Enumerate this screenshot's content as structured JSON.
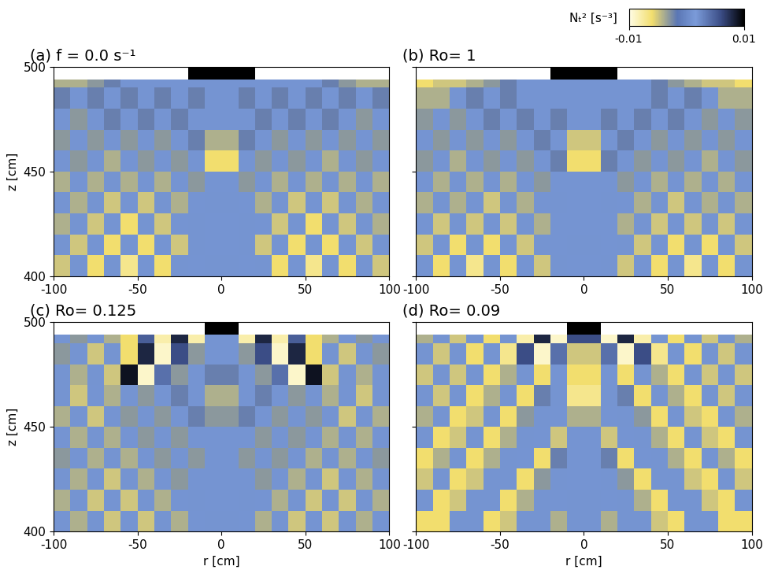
{
  "colorbar": {
    "label": "Nₜ² [s⁻³]",
    "range": [
      -0.01,
      0.01
    ],
    "ticks": [
      -0.01,
      0.01
    ]
  },
  "chart_data": [
    {
      "type": "heatmap",
      "title": "(a) f = 0.0 s⁻¹",
      "ylabel": "z [cm]",
      "xlim": [
        -100,
        100
      ],
      "ylim": [
        400,
        500
      ],
      "xticks": [
        -100,
        -50,
        0,
        50,
        100
      ],
      "yticks": [
        400,
        450,
        500
      ],
      "r_edges": [
        -100,
        -90,
        -80,
        -70,
        -60,
        -50,
        -40,
        -30,
        -20,
        -10,
        0,
        10,
        20,
        30,
        40,
        50,
        60,
        70,
        80,
        90,
        100
      ],
      "z_edges": [
        400,
        410,
        420,
        430,
        440,
        450,
        460,
        470,
        480,
        490,
        494,
        500
      ],
      "cells": [
        [
          -0.005,
          0.002,
          -0.006,
          0.002,
          -0.007,
          0.001,
          -0.006,
          0.002,
          0.001,
          0.002,
          0.002,
          0.001,
          0.002,
          -0.006,
          0.001,
          -0.007,
          0.002,
          -0.006,
          0.002,
          -0.005
        ],
        [
          0.002,
          -0.005,
          0.001,
          -0.006,
          0.002,
          -0.006,
          0.001,
          -0.005,
          0.002,
          0.001,
          0.001,
          0.002,
          -0.005,
          0.001,
          -0.006,
          0.002,
          -0.006,
          0.001,
          -0.005,
          0.002
        ],
        [
          -0.004,
          0.002,
          -0.005,
          0.001,
          -0.006,
          0.002,
          -0.005,
          0.001,
          0.002,
          0.001,
          0.001,
          0.002,
          0.001,
          -0.005,
          0.002,
          -0.006,
          0.001,
          -0.005,
          0.002,
          -0.004
        ],
        [
          0.001,
          -0.004,
          0.002,
          -0.005,
          0.001,
          -0.005,
          0.002,
          -0.004,
          0.001,
          0.002,
          0.002,
          0.001,
          -0.004,
          0.002,
          -0.005,
          0.001,
          -0.005,
          0.002,
          -0.004,
          0.001
        ],
        [
          -0.004,
          0.001,
          -0.004,
          0.002,
          -0.004,
          0.001,
          -0.004,
          0.001,
          -0.003,
          0.001,
          0.001,
          -0.003,
          0.001,
          -0.004,
          0.001,
          -0.004,
          0.002,
          -0.004,
          0.001,
          -0.004
        ],
        [
          0.001,
          -0.003,
          0.001,
          -0.004,
          0.001,
          -0.003,
          0.001,
          -0.003,
          0.001,
          -0.006,
          -0.006,
          0.001,
          -0.003,
          0.001,
          -0.003,
          0.001,
          -0.004,
          0.001,
          -0.003,
          0.001
        ],
        [
          -0.003,
          0.001,
          -0.003,
          0.001,
          -0.003,
          0.001,
          -0.003,
          0.001,
          -0.002,
          -0.004,
          -0.004,
          -0.002,
          0.001,
          -0.003,
          0.001,
          -0.003,
          0.001,
          -0.003,
          0.001,
          -0.003
        ],
        [
          0.001,
          -0.003,
          0.001,
          -0.002,
          0.001,
          -0.002,
          0.001,
          -0.002,
          0.001,
          0.001,
          0.001,
          0.001,
          -0.002,
          0.001,
          -0.002,
          0.001,
          -0.002,
          0.001,
          -0.003,
          0.001
        ],
        [
          -0.002,
          0.001,
          -0.002,
          0.001,
          -0.002,
          0.001,
          -0.002,
          0.001,
          -0.002,
          0.001,
          0.001,
          -0.002,
          0.001,
          -0.002,
          0.001,
          -0.002,
          0.001,
          -0.002,
          0.001,
          -0.002
        ],
        [
          -0.004,
          -0.004,
          -0.003,
          -0.002,
          0.001,
          0.001,
          0.001,
          0.001,
          0.001,
          0.001,
          0.001,
          0.001,
          0.001,
          0.001,
          0.001,
          0.001,
          -0.002,
          -0.003,
          -0.004,
          -0.004
        ],
        [
          null,
          null,
          null,
          null,
          null,
          null,
          null,
          null,
          0.01,
          0.01,
          0.01,
          0.01,
          null,
          null,
          null,
          null,
          null,
          null,
          null,
          null
        ]
      ]
    },
    {
      "type": "heatmap",
      "title": "(b) Ro= 1",
      "tick_labels": "x",
      "xlim": [
        -100,
        100
      ],
      "ylim": [
        400,
        500
      ],
      "xticks": [
        -100,
        -50,
        0,
        50,
        100
      ],
      "yticks": [
        400,
        450,
        500
      ],
      "r_edges": [
        -100,
        -90,
        -80,
        -70,
        -60,
        -50,
        -40,
        -30,
        -20,
        -10,
        0,
        10,
        20,
        30,
        40,
        50,
        60,
        70,
        80,
        90,
        100
      ],
      "z_edges": [
        400,
        410,
        420,
        430,
        440,
        450,
        460,
        470,
        480,
        490,
        494,
        500
      ],
      "cells": [
        [
          0.002,
          -0.006,
          0.001,
          -0.007,
          0.002,
          -0.006,
          0.001,
          -0.005,
          0.002,
          0.001,
          0.001,
          0.002,
          -0.005,
          0.001,
          -0.006,
          0.002,
          -0.007,
          0.001,
          -0.006,
          0.002
        ],
        [
          -0.005,
          0.001,
          -0.006,
          0.002,
          -0.006,
          0.001,
          -0.005,
          0.002,
          0.001,
          0.002,
          0.002,
          0.001,
          0.002,
          -0.005,
          0.001,
          -0.006,
          0.002,
          -0.006,
          0.001,
          -0.005
        ],
        [
          0.001,
          -0.005,
          0.002,
          -0.005,
          0.001,
          -0.005,
          0.002,
          -0.004,
          0.001,
          0.001,
          0.001,
          0.001,
          -0.004,
          0.002,
          -0.005,
          0.001,
          -0.005,
          0.002,
          -0.005,
          0.001
        ],
        [
          -0.004,
          0.002,
          -0.004,
          0.001,
          -0.005,
          0.002,
          -0.004,
          0.001,
          0.002,
          0.001,
          0.001,
          0.002,
          0.001,
          -0.004,
          0.002,
          -0.005,
          0.001,
          -0.004,
          0.002,
          -0.004
        ],
        [
          0.001,
          -0.004,
          0.001,
          -0.004,
          0.001,
          -0.004,
          0.001,
          -0.003,
          0.001,
          0.001,
          0.001,
          0.001,
          -0.003,
          0.001,
          -0.004,
          0.001,
          -0.004,
          0.001,
          -0.004,
          0.001
        ],
        [
          -0.003,
          0.001,
          -0.004,
          0.001,
          -0.003,
          0.001,
          -0.003,
          0.001,
          -0.002,
          -0.006,
          -0.006,
          -0.002,
          0.001,
          -0.003,
          0.001,
          -0.003,
          0.001,
          -0.004,
          0.001,
          -0.003
        ],
        [
          0.001,
          -0.003,
          0.001,
          -0.003,
          0.001,
          -0.003,
          0.001,
          -0.002,
          0.001,
          -0.005,
          -0.005,
          0.001,
          -0.002,
          0.001,
          -0.003,
          0.001,
          -0.003,
          0.001,
          -0.003,
          0.001
        ],
        [
          -0.003,
          0.001,
          -0.003,
          0.001,
          -0.002,
          0.001,
          -0.002,
          0.001,
          -0.002,
          0.001,
          0.001,
          -0.002,
          0.001,
          -0.002,
          0.001,
          -0.002,
          0.001,
          -0.003,
          0.001,
          -0.003
        ],
        [
          -0.004,
          -0.004,
          0.001,
          -0.002,
          0.001,
          -0.002,
          0.001,
          0.001,
          0.001,
          0.001,
          0.001,
          0.001,
          0.001,
          0.001,
          -0.002,
          0.001,
          -0.002,
          0.001,
          -0.004,
          -0.004
        ],
        [
          -0.006,
          -0.005,
          -0.005,
          -0.004,
          -0.003,
          -0.002,
          0.001,
          0.001,
          0.001,
          0.001,
          0.001,
          0.001,
          0.001,
          0.001,
          -0.002,
          -0.003,
          -0.004,
          -0.005,
          -0.005,
          -0.006
        ],
        [
          null,
          null,
          null,
          null,
          null,
          null,
          null,
          null,
          0.01,
          0.01,
          0.01,
          0.01,
          null,
          null,
          null,
          null,
          null,
          null,
          null,
          null
        ]
      ]
    },
    {
      "type": "heatmap",
      "title": "(c) Ro= 0.125",
      "xlabel": "r [cm]",
      "ylabel": "z [cm]",
      "xlim": [
        -100,
        100
      ],
      "ylim": [
        400,
        500
      ],
      "xticks": [
        -100,
        -50,
        0,
        50,
        100
      ],
      "yticks": [
        400,
        450,
        500
      ],
      "r_edges": [
        -100,
        -90,
        -80,
        -70,
        -60,
        -50,
        -40,
        -30,
        -20,
        -10,
        0,
        10,
        20,
        30,
        40,
        50,
        60,
        70,
        80,
        90,
        100
      ],
      "z_edges": [
        400,
        410,
        420,
        430,
        440,
        450,
        460,
        470,
        480,
        490,
        494,
        500
      ],
      "cells": [
        [
          0.001,
          -0.004,
          0.002,
          -0.005,
          0.001,
          -0.005,
          0.002,
          -0.004,
          0.001,
          0.002,
          0.002,
          0.001,
          -0.004,
          0.002,
          -0.005,
          0.001,
          -0.005,
          0.002,
          -0.004,
          0.001
        ],
        [
          -0.004,
          0.002,
          -0.005,
          0.001,
          -0.005,
          0.002,
          -0.004,
          0.001,
          0.002,
          0.001,
          0.001,
          0.002,
          0.001,
          -0.004,
          0.002,
          -0.005,
          0.001,
          -0.005,
          0.002,
          -0.004
        ],
        [
          0.002,
          -0.004,
          0.001,
          -0.005,
          0.002,
          -0.004,
          0.001,
          -0.003,
          0.001,
          0.001,
          0.001,
          0.001,
          -0.003,
          0.001,
          -0.004,
          0.002,
          -0.005,
          0.001,
          -0.004,
          0.002
        ],
        [
          -0.003,
          0.001,
          -0.004,
          0.002,
          -0.004,
          0.001,
          -0.003,
          0.002,
          -0.003,
          0.001,
          0.001,
          -0.003,
          0.002,
          -0.003,
          0.001,
          -0.004,
          0.002,
          -0.004,
          0.001,
          -0.003
        ],
        [
          0.001,
          -0.004,
          0.002,
          -0.004,
          0.001,
          -0.003,
          0.002,
          -0.003,
          0.001,
          0.001,
          0.001,
          0.001,
          -0.003,
          0.002,
          -0.003,
          0.001,
          -0.004,
          0.002,
          -0.004,
          0.001
        ],
        [
          -0.004,
          0.002,
          -0.005,
          0.001,
          -0.003,
          0.002,
          -0.003,
          0.001,
          -0.002,
          -0.003,
          -0.003,
          -0.002,
          0.001,
          -0.003,
          0.002,
          -0.003,
          0.001,
          -0.005,
          0.002,
          -0.004
        ],
        [
          0.002,
          -0.005,
          0.001,
          -0.004,
          0.002,
          -0.003,
          0.001,
          -0.002,
          0.001,
          -0.004,
          -0.004,
          0.001,
          -0.002,
          0.001,
          -0.003,
          0.002,
          -0.004,
          0.001,
          -0.005,
          0.002
        ],
        [
          0.002,
          -0.004,
          0.002,
          -0.005,
          0.009,
          -0.009,
          0.004,
          -0.003,
          0.001,
          -0.002,
          -0.002,
          0.001,
          -0.003,
          0.004,
          -0.009,
          0.009,
          -0.005,
          0.002,
          -0.004,
          0.002
        ],
        [
          -0.003,
          0.002,
          -0.005,
          0.002,
          -0.006,
          0.008,
          -0.009,
          0.006,
          -0.003,
          0.001,
          0.001,
          -0.003,
          0.006,
          -0.009,
          0.008,
          -0.006,
          0.002,
          -0.005,
          0.002,
          -0.003
        ],
        [
          0.001,
          -0.003,
          0.001,
          -0.004,
          -0.006,
          0.005,
          -0.008,
          0.008,
          -0.008,
          0.001,
          0.001,
          -0.008,
          0.008,
          -0.008,
          0.005,
          -0.006,
          -0.004,
          0.001,
          -0.003,
          0.001
        ],
        [
          null,
          null,
          null,
          null,
          null,
          null,
          null,
          null,
          null,
          0.01,
          0.01,
          null,
          null,
          null,
          null,
          null,
          null,
          null,
          null,
          null
        ]
      ]
    },
    {
      "type": "heatmap",
      "title": "(d) Ro= 0.09",
      "xlabel": "r [cm]",
      "tick_labels": "x",
      "xlim": [
        -100,
        100
      ],
      "ylim": [
        400,
        500
      ],
      "xticks": [
        -100,
        -50,
        0,
        50,
        100
      ],
      "yticks": [
        400,
        450,
        500
      ],
      "r_edges": [
        -100,
        -90,
        -80,
        -70,
        -60,
        -50,
        -40,
        -30,
        -20,
        -10,
        0,
        10,
        20,
        30,
        40,
        50,
        60,
        70,
        80,
        90,
        100
      ],
      "z_edges": [
        400,
        410,
        420,
        430,
        440,
        450,
        460,
        470,
        480,
        490,
        494,
        500
      ],
      "cells": [
        [
          -0.006,
          -0.006,
          0.002,
          0.002,
          -0.006,
          -0.005,
          0.002,
          0.002,
          -0.004,
          0.002,
          0.002,
          -0.004,
          0.002,
          0.002,
          -0.005,
          -0.006,
          0.002,
          0.002,
          -0.006,
          -0.006
        ],
        [
          0.002,
          -0.006,
          -0.005,
          0.002,
          0.002,
          -0.006,
          -0.004,
          0.002,
          0.001,
          0.002,
          0.002,
          0.001,
          0.002,
          -0.004,
          -0.006,
          0.002,
          0.002,
          -0.005,
          -0.006,
          0.002
        ],
        [
          -0.005,
          0.002,
          -0.006,
          -0.005,
          0.002,
          0.002,
          -0.006,
          -0.003,
          0.002,
          0.001,
          0.001,
          0.002,
          -0.003,
          -0.006,
          0.002,
          0.002,
          -0.005,
          -0.006,
          0.002,
          -0.005
        ],
        [
          -0.006,
          -0.004,
          0.002,
          -0.006,
          -0.004,
          0.002,
          0.001,
          -0.006,
          -0.002,
          0.001,
          0.001,
          -0.002,
          -0.006,
          0.001,
          0.002,
          -0.004,
          -0.006,
          0.002,
          -0.004,
          -0.006
        ],
        [
          0.002,
          -0.006,
          -0.005,
          0.002,
          -0.006,
          -0.004,
          0.002,
          0.001,
          -0.005,
          0.001,
          0.001,
          -0.005,
          0.001,
          0.002,
          -0.004,
          -0.006,
          0.002,
          -0.005,
          -0.006,
          0.002
        ],
        [
          -0.004,
          0.002,
          -0.006,
          -0.005,
          0.002,
          -0.006,
          -0.003,
          0.002,
          0.001,
          -0.004,
          -0.004,
          0.001,
          0.002,
          -0.003,
          -0.006,
          0.002,
          -0.005,
          -0.006,
          0.002,
          -0.004
        ],
        [
          0.002,
          -0.005,
          0.002,
          -0.006,
          -0.004,
          0.002,
          -0.006,
          -0.002,
          0.002,
          -0.007,
          -0.007,
          0.002,
          -0.002,
          -0.006,
          0.002,
          -0.004,
          -0.006,
          0.002,
          -0.005,
          0.002
        ],
        [
          -0.005,
          0.002,
          -0.005,
          0.002,
          -0.006,
          -0.004,
          0.002,
          -0.006,
          0.001,
          -0.006,
          -0.006,
          0.001,
          -0.006,
          0.002,
          -0.004,
          -0.006,
          0.002,
          -0.005,
          0.002,
          -0.005
        ],
        [
          0.002,
          -0.005,
          0.002,
          -0.006,
          0.002,
          -0.007,
          0.006,
          -0.009,
          0.004,
          -0.005,
          -0.005,
          0.004,
          -0.009,
          0.006,
          -0.007,
          0.002,
          -0.006,
          0.002,
          -0.005,
          0.002
        ],
        [
          -0.004,
          0.002,
          -0.005,
          0.001,
          -0.006,
          0.002,
          -0.008,
          0.008,
          -0.009,
          0.006,
          0.006,
          -0.009,
          0.008,
          -0.008,
          0.002,
          -0.006,
          0.001,
          -0.005,
          0.002,
          -0.004
        ],
        [
          null,
          null,
          null,
          null,
          null,
          null,
          null,
          null,
          null,
          0.01,
          0.01,
          null,
          null,
          null,
          null,
          null,
          null,
          null,
          null,
          null
        ]
      ]
    }
  ]
}
